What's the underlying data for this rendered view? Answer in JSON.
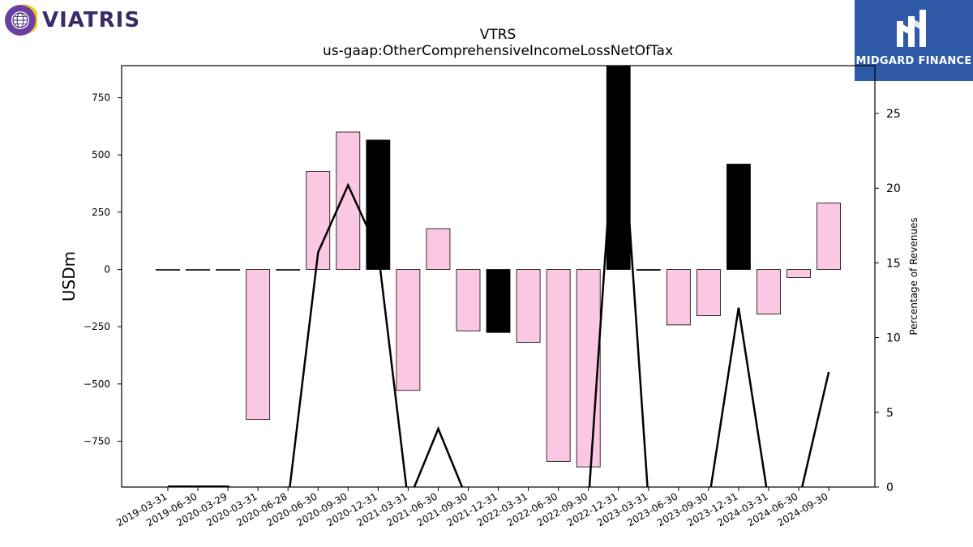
{
  "logos": {
    "left": "VIATRIS",
    "right": "MIDGARD FINANCE"
  },
  "chart_data": {
    "type": "bar",
    "title": "VTRS",
    "subtitle": "us-gaap:OtherComprehensiveIncomeLossNetOfTax",
    "ylabel": "USDm",
    "y2label": "Percentage of Revenues",
    "ylim": [
      -950,
      890
    ],
    "y2lim": [
      0,
      28.2
    ],
    "yticks": [
      -750,
      -500,
      -250,
      0,
      250,
      500,
      750
    ],
    "y2ticks": [
      0,
      5,
      10,
      15,
      20,
      25
    ],
    "categories": [
      "2019-03-31",
      "2019-06-30",
      "2020-03-29",
      "2020-03-31",
      "2020-06-28",
      "2020-06-30",
      "2020-09-30",
      "2020-12-31",
      "2021-03-31",
      "2021-06-30",
      "2021-09-30",
      "2021-12-31",
      "2022-03-31",
      "2022-06-30",
      "2022-09-30",
      "2022-12-31",
      "2023-03-31",
      "2023-06-30",
      "2023-09-30",
      "2023-12-31",
      "2024-03-31",
      "2024-06-30",
      "2024-09-30"
    ],
    "series": [
      {
        "values": [
          0,
          0,
          0,
          -655,
          0,
          428,
          600,
          565,
          -528,
          178,
          -268,
          -275,
          -318,
          -838,
          -862,
          890,
          -3,
          -242,
          -202,
          460,
          -195,
          -35,
          290
        ],
        "colors": [
          "#fbc8e3",
          "#fbc8e3",
          "#fbc8e3",
          "#fbc8e3",
          "#fbc8e3",
          "#fbc8e3",
          "#fbc8e3",
          "#000000",
          "#fbc8e3",
          "#fbc8e3",
          "#fbc8e3",
          "#000000",
          "#fbc8e3",
          "#fbc8e3",
          "#fbc8e3",
          "#000000",
          "#000000",
          "#fbc8e3",
          "#fbc8e3",
          "#000000",
          "#fbc8e3",
          "#fbc8e3",
          "#fbc8e3"
        ]
      },
      {
        "type": "line",
        "axis": "right",
        "values": [
          0.03,
          0.03,
          0.03,
          -1,
          -1,
          15.7,
          20.2,
          15.8,
          -1,
          3.9,
          -1,
          -1,
          -1,
          -1,
          -1,
          28.5,
          -1,
          -1,
          -1,
          12.0,
          -1,
          -1,
          7.7
        ]
      }
    ],
    "grid": false,
    "legend": "none"
  }
}
